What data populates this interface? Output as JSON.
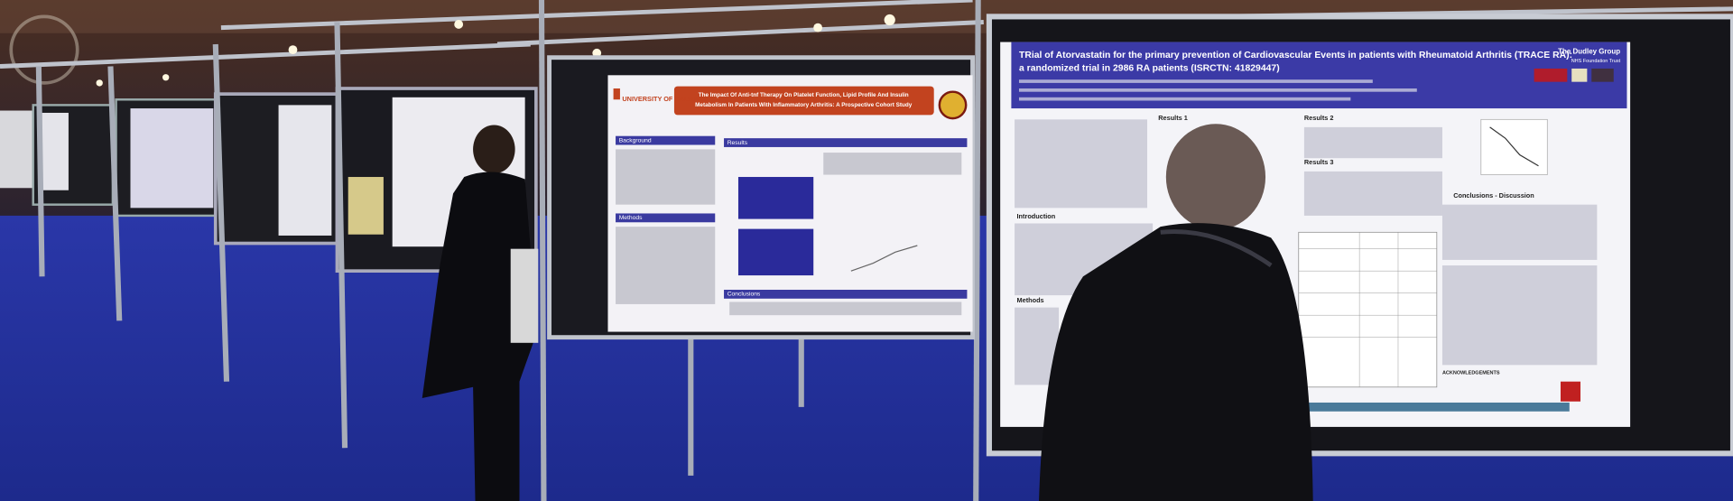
{
  "middle_poster": {
    "institution": "UNIVERSITY OF CALGARY",
    "title_lines": [
      "The Impact Of Anti-tnf Therapy On Platelet Function, Lipid Profile And Insulin",
      "Metabolism In Patients With Inflammatory Arthritis: A Prospective Cohort Study"
    ],
    "sections": [
      "Background",
      "Results",
      "Methods",
      "Conclusions"
    ]
  },
  "right_poster": {
    "title_lines": [
      "TRial of Atorvastatin for the primary prevention of Cardiovascular Events in patients with Rheumatoid Arthritis (TRACE RA):",
      "a randomized trial in 2986 RA patients (ISRCTN: 41829447)"
    ],
    "organization": "The Dudley Group",
    "organization_sub": "NHS Foundation Trust",
    "sections": [
      "Introduction",
      "Methods",
      "Results 1",
      "Results 2",
      "Results 3",
      "Conclusions - Discussion",
      "ACKNOWLEDGEMENTS"
    ]
  }
}
